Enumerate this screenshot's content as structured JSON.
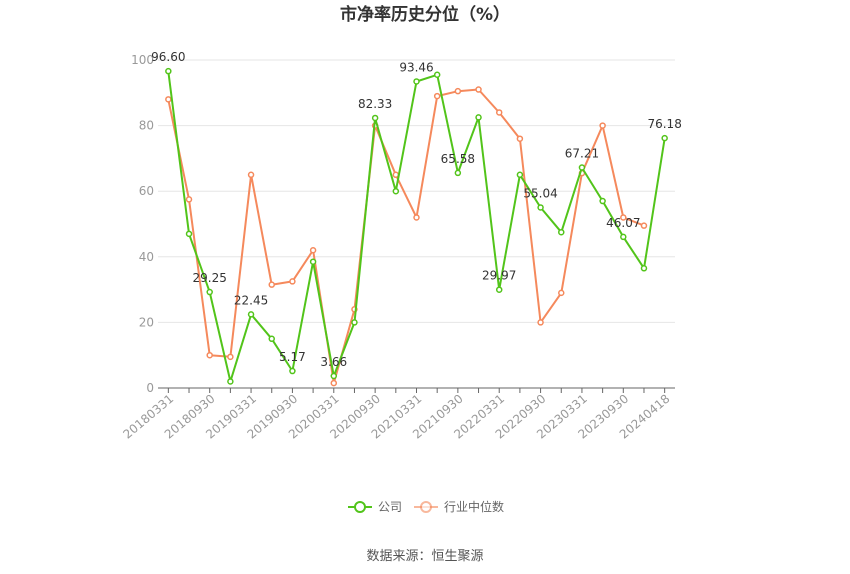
{
  "chart_data": {
    "type": "line",
    "title": "市净率历史分位（%）",
    "ylim": [
      0,
      100
    ],
    "yticks": [
      0,
      20,
      40,
      60,
      80,
      100
    ],
    "x": [
      "20180331",
      "20180630",
      "20180930",
      "20181231",
      "20190331",
      "20190630",
      "20190930",
      "20191231",
      "20200331",
      "20200630",
      "20200930",
      "20201231",
      "20210331",
      "20210630",
      "20210930",
      "20211231",
      "20220331",
      "20220630",
      "20220930",
      "20221231",
      "20230331",
      "20230630",
      "20230930",
      "20231231",
      "20240418"
    ],
    "xtick_labels": [
      "20180331",
      "20180930",
      "20190331",
      "20190930",
      "20200331",
      "20200930",
      "20210331",
      "20210930",
      "20220331",
      "20220930",
      "20230331",
      "20230930",
      "20240418"
    ],
    "series": [
      {
        "name": "公司",
        "color": "#52c41a",
        "values": [
          96.6,
          47.0,
          29.25,
          2.0,
          22.45,
          15.0,
          5.17,
          38.5,
          3.66,
          20.0,
          82.33,
          60.0,
          93.46,
          95.5,
          65.58,
          82.5,
          29.97,
          65.0,
          55.04,
          47.5,
          67.21,
          57.0,
          46.07,
          36.5,
          76.18
        ],
        "labels": {
          "0": "96.60",
          "2": "29.25",
          "4": "22.45",
          "6": "5.17",
          "8": "3.66",
          "10": "82.33",
          "12": "93.46",
          "14": "65.58",
          "16": "29.97",
          "18": "55.04",
          "20": "67.21",
          "22": "46.07",
          "24": "76.18"
        }
      },
      {
        "name": "行业中位数",
        "color": "#f5895c",
        "values": [
          88.0,
          57.5,
          10.0,
          9.5,
          65.0,
          31.5,
          32.5,
          42.0,
          1.5,
          24.0,
          80.0,
          65.0,
          52.0,
          89.0,
          90.5,
          91.0,
          84.0,
          76.0,
          20.0,
          29.0,
          65.5,
          80.0,
          52.0,
          49.5,
          null
        ]
      }
    ],
    "legend_position": "bottom",
    "grid": true
  },
  "source_text": "数据来源：恒生聚源"
}
